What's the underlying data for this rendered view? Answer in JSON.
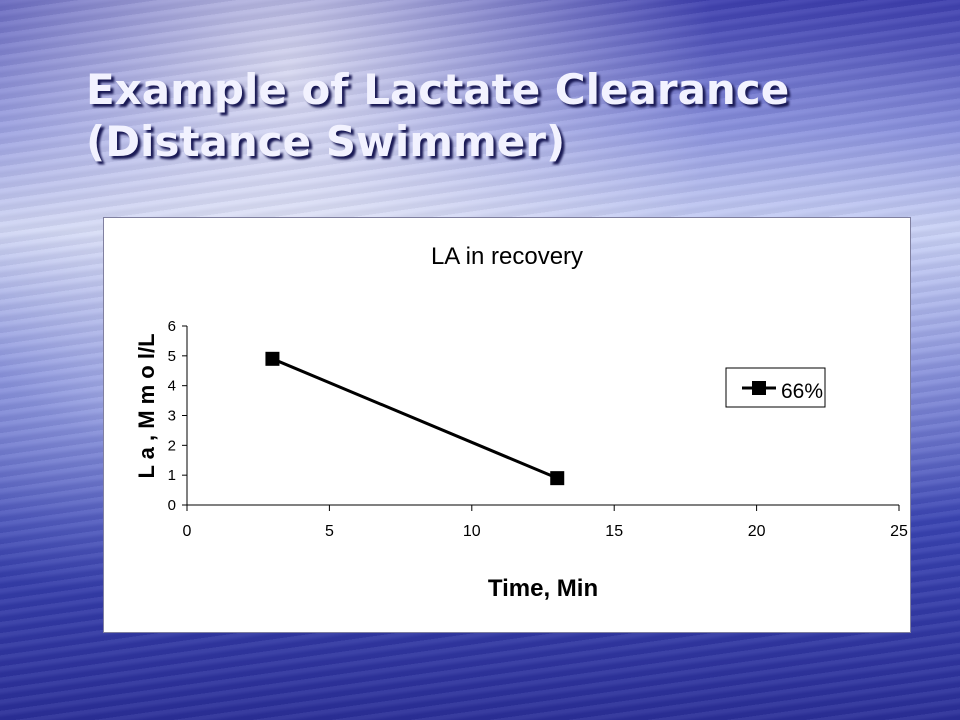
{
  "slide": {
    "title_line1": "Example of Lactate Clearance",
    "title_line2": "(Distance Swimmer)"
  },
  "chart_data": {
    "type": "line",
    "title": "LA in recovery",
    "xlabel": "Time, Min",
    "ylabel": "L a , M m o l/L",
    "xlim": [
      0,
      25
    ],
    "ylim": [
      0,
      6
    ],
    "x_ticks": [
      0,
      5,
      10,
      15,
      20,
      25
    ],
    "y_ticks": [
      0,
      1,
      2,
      3,
      4,
      5,
      6
    ],
    "grid": false,
    "legend_position": "right",
    "series": [
      {
        "name": "66%",
        "x": [
          3,
          13
        ],
        "y": [
          4.9,
          0.9
        ],
        "color": "#000000",
        "marker": "square"
      }
    ]
  }
}
